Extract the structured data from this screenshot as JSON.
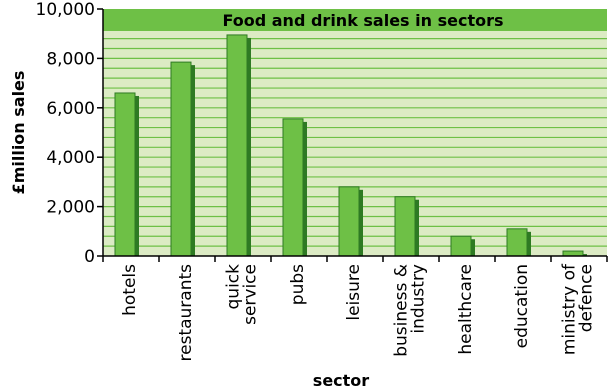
{
  "chart_data": {
    "type": "bar",
    "title": "Food and drink sales in sectors",
    "xlabel": "sector",
    "ylabel": "£million sales",
    "ylim": [
      0,
      10000
    ],
    "yticks": [
      "0",
      "2,000",
      "4,000",
      "6,000",
      "8,000",
      "10,000"
    ],
    "categories": [
      [
        "hotels"
      ],
      [
        "restaurants"
      ],
      [
        "quick",
        "service"
      ],
      [
        "pubs"
      ],
      [
        "leisure"
      ],
      [
        "business &",
        "industry"
      ],
      [
        "healthcare"
      ],
      [
        "education"
      ],
      [
        "ministry of",
        "defence"
      ]
    ],
    "values": [
      6600,
      7850,
      8950,
      5550,
      2800,
      2400,
      800,
      1100,
      200
    ],
    "grid": true,
    "colors": {
      "plot_background": "#dcebc4",
      "title_band": "#6ec046",
      "gridline": "#6ec046",
      "bar": "#6ec046",
      "bar_shadow": "#2e7a23",
      "bar_outline": "#2e7a23",
      "axis": "#000000"
    }
  }
}
